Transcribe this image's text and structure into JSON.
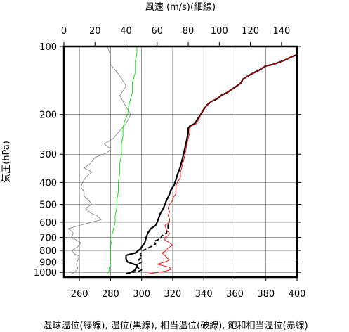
{
  "chart_data": {
    "type": "line",
    "top_xlabel": "風速 (m/s)(細線)",
    "bottom_xlabel": "湿球温位(緑線), 温位(黒線), 相当温位(破線), 飽和相当温位(赤線)",
    "ylabel": "気圧(hPa)",
    "y_scale": "log",
    "y_inverted": true,
    "ylim": [
      1050,
      100
    ],
    "y_ticks": [
      100,
      200,
      300,
      400,
      500,
      600,
      700,
      800,
      900,
      1000
    ],
    "bottom_xlim": [
      250,
      400
    ],
    "bottom_x_ticks": [
      260,
      280,
      300,
      320,
      340,
      360,
      380,
      400
    ],
    "top_xlim": [
      0,
      150
    ],
    "top_x_ticks": [
      0,
      20,
      40,
      60,
      80,
      100,
      120,
      140
    ],
    "grid": true,
    "series": [
      {
        "axis": "top",
        "color": "#888888",
        "style": "thin",
        "points": [
          [
            4,
            1020
          ],
          [
            7,
            1000
          ],
          [
            9,
            960
          ],
          [
            8,
            920
          ],
          [
            9,
            880
          ],
          [
            10,
            850
          ],
          [
            7,
            830
          ],
          [
            5,
            800
          ],
          [
            9,
            770
          ],
          [
            11,
            740
          ],
          [
            8,
            720
          ],
          [
            5,
            700
          ],
          [
            6,
            670
          ],
          [
            3,
            640
          ],
          [
            10,
            620
          ],
          [
            18,
            600
          ],
          [
            24,
            585
          ],
          [
            22,
            565
          ],
          [
            17,
            545
          ],
          [
            14,
            520
          ],
          [
            18,
            500
          ],
          [
            16,
            480
          ],
          [
            13,
            460
          ],
          [
            13,
            440
          ],
          [
            11,
            420
          ],
          [
            12,
            400
          ],
          [
            14,
            380
          ],
          [
            18,
            360
          ],
          [
            13,
            345
          ],
          [
            17,
            330
          ],
          [
            20,
            310
          ],
          [
            28,
            295
          ],
          [
            30,
            285
          ],
          [
            26,
            270
          ],
          [
            32,
            255
          ],
          [
            35,
            240
          ],
          [
            40,
            220
          ],
          [
            43,
            200
          ],
          [
            40,
            185
          ],
          [
            36,
            165
          ],
          [
            40,
            150
          ],
          [
            36,
            135
          ],
          [
            30,
            120
          ],
          [
            30,
            110
          ],
          [
            28,
            100
          ]
        ]
      },
      {
        "axis": "bottom",
        "color": "#00dd00",
        "style": "thin",
        "points": [
          [
            278,
            1010
          ],
          [
            279,
            990
          ],
          [
            279,
            960
          ],
          [
            280,
            920
          ],
          [
            280,
            880
          ],
          [
            280,
            840
          ],
          [
            280,
            800
          ],
          [
            280,
            760
          ],
          [
            281,
            720
          ],
          [
            281,
            680
          ],
          [
            282,
            640
          ],
          [
            283,
            600
          ],
          [
            283,
            560
          ],
          [
            284,
            520
          ],
          [
            284,
            480
          ],
          [
            285,
            440
          ],
          [
            285,
            400
          ],
          [
            286,
            360
          ],
          [
            286,
            330
          ],
          [
            287,
            300
          ],
          [
            287,
            270
          ],
          [
            288,
            250
          ],
          [
            288,
            230
          ],
          [
            289,
            215
          ],
          [
            291,
            200
          ],
          [
            292,
            180
          ],
          [
            294,
            160
          ],
          [
            294,
            145
          ],
          [
            296,
            130
          ],
          [
            296,
            115
          ],
          [
            297,
            108
          ],
          [
            297,
            100
          ]
        ]
      },
      {
        "axis": "bottom",
        "color": "#000000",
        "style": "thick",
        "points": [
          [
            290,
            1015
          ],
          [
            293,
            1000
          ],
          [
            296,
            975
          ],
          [
            297,
            930
          ],
          [
            291,
            900
          ],
          [
            290,
            870
          ],
          [
            290,
            840
          ],
          [
            296,
            820
          ],
          [
            299,
            790
          ],
          [
            302,
            740
          ],
          [
            303,
            700
          ],
          [
            304,
            670
          ],
          [
            306,
            640
          ],
          [
            309,
            620
          ],
          [
            310,
            600
          ],
          [
            311,
            575
          ],
          [
            312,
            550
          ],
          [
            314,
            520
          ],
          [
            315,
            500
          ],
          [
            316,
            480
          ],
          [
            318,
            450
          ],
          [
            319,
            430
          ],
          [
            321,
            410
          ],
          [
            322,
            390
          ],
          [
            323,
            370
          ],
          [
            325,
            340
          ],
          [
            326,
            320
          ],
          [
            327,
            300
          ],
          [
            328,
            280
          ],
          [
            329,
            260
          ],
          [
            330,
            240
          ],
          [
            330,
            230
          ],
          [
            331,
            225
          ],
          [
            334,
            220
          ],
          [
            336,
            210
          ],
          [
            338,
            200
          ],
          [
            340,
            190
          ],
          [
            342,
            182
          ],
          [
            345,
            175
          ],
          [
            349,
            170
          ],
          [
            351,
            165
          ],
          [
            355,
            160
          ],
          [
            358,
            155
          ],
          [
            361,
            150
          ],
          [
            364,
            145
          ],
          [
            365,
            140
          ],
          [
            367,
            137
          ],
          [
            371,
            132
          ],
          [
            375,
            128
          ],
          [
            380,
            122
          ],
          [
            385,
            120
          ],
          [
            392,
            115
          ],
          [
            398,
            110
          ],
          [
            400,
            109
          ]
        ]
      },
      {
        "axis": "bottom",
        "color": "#000000",
        "style": "dashed",
        "points": [
          [
            290,
            1015
          ],
          [
            294,
            1000
          ],
          [
            298,
            990
          ],
          [
            300,
            975
          ],
          [
            297,
            950
          ],
          [
            298,
            920
          ],
          [
            300,
            900
          ],
          [
            298,
            880
          ],
          [
            300,
            860
          ],
          [
            299,
            830
          ],
          [
            301,
            800
          ],
          [
            306,
            770
          ],
          [
            309,
            750
          ],
          [
            308,
            730
          ],
          [
            312,
            710
          ],
          [
            313,
            690
          ],
          [
            316,
            670
          ],
          [
            317,
            640
          ],
          [
            317,
            610
          ]
        ]
      },
      {
        "axis": "bottom",
        "color": "#ff0000",
        "style": "thin",
        "points": [
          [
            302,
            1020
          ],
          [
            311,
            1000
          ],
          [
            316,
            985
          ],
          [
            319,
            970
          ],
          [
            318,
            950
          ],
          [
            314,
            935
          ],
          [
            310,
            920
          ],
          [
            315,
            900
          ],
          [
            318,
            880
          ],
          [
            316,
            860
          ],
          [
            315,
            840
          ],
          [
            313,
            820
          ],
          [
            316,
            800
          ],
          [
            317,
            780
          ],
          [
            320,
            760
          ],
          [
            318,
            740
          ],
          [
            315,
            720
          ],
          [
            315,
            700
          ],
          [
            317,
            690
          ],
          [
            318,
            670
          ],
          [
            316,
            650
          ],
          [
            315,
            620
          ],
          [
            318,
            600
          ],
          [
            318,
            580
          ],
          [
            317,
            560
          ],
          [
            318,
            540
          ],
          [
            317,
            520
          ],
          [
            318,
            500
          ],
          [
            320,
            480
          ],
          [
            320,
            470
          ],
          [
            322,
            450
          ],
          [
            322,
            430
          ],
          [
            322,
            415
          ],
          [
            323,
            400
          ],
          [
            325,
            380
          ],
          [
            325,
            360
          ],
          [
            326,
            340
          ],
          [
            327,
            320
          ],
          [
            328,
            300
          ],
          [
            329,
            275
          ],
          [
            330,
            255
          ],
          [
            331,
            240
          ],
          [
            331,
            230
          ],
          [
            332,
            225
          ],
          [
            335,
            220
          ],
          [
            337,
            210
          ],
          [
            338,
            200
          ],
          [
            340,
            190
          ],
          [
            342,
            182
          ],
          [
            345,
            175
          ],
          [
            348,
            170
          ],
          [
            351,
            165
          ],
          [
            355,
            160
          ],
          [
            358,
            155
          ],
          [
            361,
            150
          ],
          [
            364,
            145
          ],
          [
            365,
            140
          ],
          [
            367,
            137
          ],
          [
            371,
            132
          ],
          [
            375,
            128
          ],
          [
            380,
            122
          ],
          [
            385,
            120
          ],
          [
            392,
            115
          ],
          [
            398,
            110
          ],
          [
            400,
            109
          ]
        ]
      }
    ]
  }
}
